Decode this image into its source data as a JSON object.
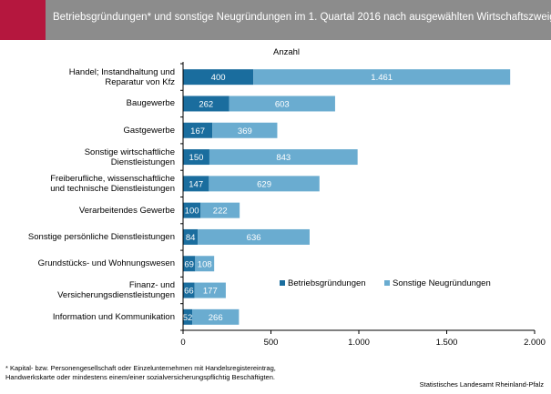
{
  "title": "Betriebsgründungen* und sonstige Neugründungen im 1. Quartal 2016 nach ausgewählten Wirtschaftszweigen",
  "footnote_line1": "* Kapital- bzw. Personengesellschaft oder Einzelunternehmen mit Handelsregistereintrag,",
  "footnote_line2": "Handwerkskarte oder mindestens einem/einer sozialversicherungspflichtig Beschäftigten.",
  "source": "Statistisches Landesamt Rheinland-Pfalz",
  "colors": {
    "accent": "#b5173e",
    "header": "#8c8c8c",
    "series_dark": "#1a6d9e",
    "series_light": "#6aacd0"
  },
  "chart_data": {
    "type": "bar",
    "orientation": "horizontal",
    "stacked": true,
    "title": "",
    "unit_label": "Anzahl",
    "categories": [
      [
        "Handel; Instandhaltung und",
        "Reparatur von Kfz"
      ],
      [
        "Baugewerbe"
      ],
      [
        "Gastgewerbe"
      ],
      [
        "Sonstige wirtschaftliche",
        "Dienstleistungen"
      ],
      [
        "Freiberufliche, wissenschaftliche",
        "und technische Dienstleistungen"
      ],
      [
        "Verarbeitendes Gewerbe"
      ],
      [
        "Sonstige persönliche Dienstleistungen"
      ],
      [
        "Grundstücks- und Wohnungswesen"
      ],
      [
        "Finanz- und",
        "Versicherungsdienstleistungen"
      ],
      [
        "Information und Kommunikation"
      ]
    ],
    "series": [
      {
        "name": "Betriebsgründungen",
        "values": [
          400,
          262,
          167,
          150,
          147,
          100,
          84,
          69,
          66,
          52
        ],
        "labels": [
          "400",
          "262",
          "167",
          "150",
          "147",
          "100",
          "84",
          "69",
          "66",
          "52"
        ]
      },
      {
        "name": "Sonstige Neugründungen",
        "values": [
          1461,
          603,
          369,
          843,
          629,
          222,
          636,
          108,
          177,
          266
        ],
        "labels": [
          "1.461",
          "603",
          "369",
          "843",
          "629",
          "222",
          "636",
          "108",
          "177",
          "266"
        ]
      }
    ],
    "xlim": [
      0,
      2000
    ],
    "xticks": [
      0,
      500,
      1000,
      1500,
      2000
    ],
    "xtick_labels": [
      "0",
      "500",
      "1.000",
      "1.500",
      "2.000"
    ],
    "legend_position": "right-middle",
    "grid": false
  }
}
